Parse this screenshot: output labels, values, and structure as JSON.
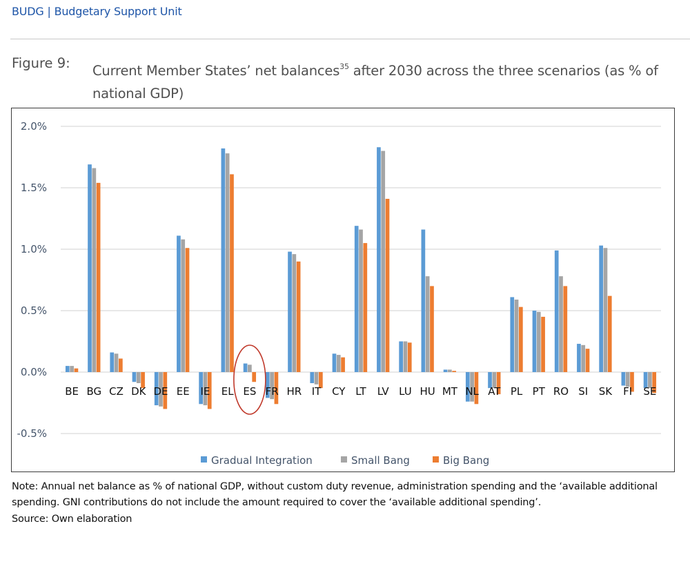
{
  "header": {
    "unit": "BUDG | Budgetary Support Unit"
  },
  "figure": {
    "label": "Figure 9:",
    "title_main": "Current Member States’ net balances",
    "title_footnote": "35",
    "title_rest": " after 2030 across the three scenarios (as % of national GDP)"
  },
  "footer": {
    "note": "Note: Annual net balance as % of national GDP, without custom duty revenue, administration spending and the ‘available additional spending. GNI contributions do not include the amount required to cover the ‘available additional spending’.",
    "source": "Source: Own elaboration"
  },
  "chart_data": {
    "type": "bar",
    "title": "Current Member States’ net balances after 2030 across the three scenarios (as % of national GDP)",
    "xlabel": "",
    "ylabel": "",
    "ylim": [
      -0.5,
      2.0
    ],
    "yticks": [
      -0.5,
      0.0,
      0.5,
      1.0,
      1.5,
      2.0
    ],
    "ytick_labels": [
      "-0.5%",
      "0.0%",
      "0.5%",
      "1.0%",
      "1.5%",
      "2.0%"
    ],
    "grid": true,
    "legend_position": "bottom",
    "highlight": {
      "category": "ES",
      "color": "#c0392b",
      "shape": "ellipse"
    },
    "categories": [
      "BE",
      "BG",
      "CZ",
      "DK",
      "DE",
      "EE",
      "IE",
      "EL",
      "ES",
      "FR",
      "HR",
      "IT",
      "CY",
      "LT",
      "LV",
      "LU",
      "HU",
      "MT",
      "NL",
      "AT",
      "PL",
      "PT",
      "RO",
      "SI",
      "SK",
      "FI",
      "SE"
    ],
    "series": [
      {
        "name": "Gradual Integration",
        "color": "#5b9bd5",
        "values": [
          0.05,
          1.69,
          0.16,
          -0.08,
          -0.27,
          1.11,
          -0.26,
          1.82,
          0.07,
          -0.21,
          0.98,
          -0.09,
          0.15,
          1.19,
          1.83,
          0.25,
          1.16,
          0.02,
          -0.24,
          -0.13,
          0.61,
          0.5,
          0.99,
          0.23,
          1.03,
          -0.11,
          -0.13
        ]
      },
      {
        "name": "Small Bang",
        "color": "#a5a5a5",
        "values": [
          0.05,
          1.66,
          0.15,
          -0.09,
          -0.28,
          1.08,
          -0.27,
          1.78,
          0.06,
          -0.22,
          0.96,
          -0.1,
          0.14,
          1.16,
          1.8,
          0.25,
          0.78,
          0.02,
          -0.24,
          -0.13,
          0.59,
          0.49,
          0.78,
          0.22,
          1.01,
          -0.12,
          -0.13
        ]
      },
      {
        "name": "Big Bang",
        "color": "#ed7d31",
        "values": [
          0.03,
          1.54,
          0.11,
          -0.13,
          -0.3,
          1.01,
          -0.3,
          1.61,
          -0.08,
          -0.26,
          0.9,
          -0.13,
          0.12,
          1.05,
          1.41,
          0.24,
          0.7,
          0.01,
          -0.26,
          -0.18,
          0.53,
          0.45,
          0.7,
          0.19,
          0.62,
          -0.16,
          -0.17
        ]
      }
    ]
  }
}
